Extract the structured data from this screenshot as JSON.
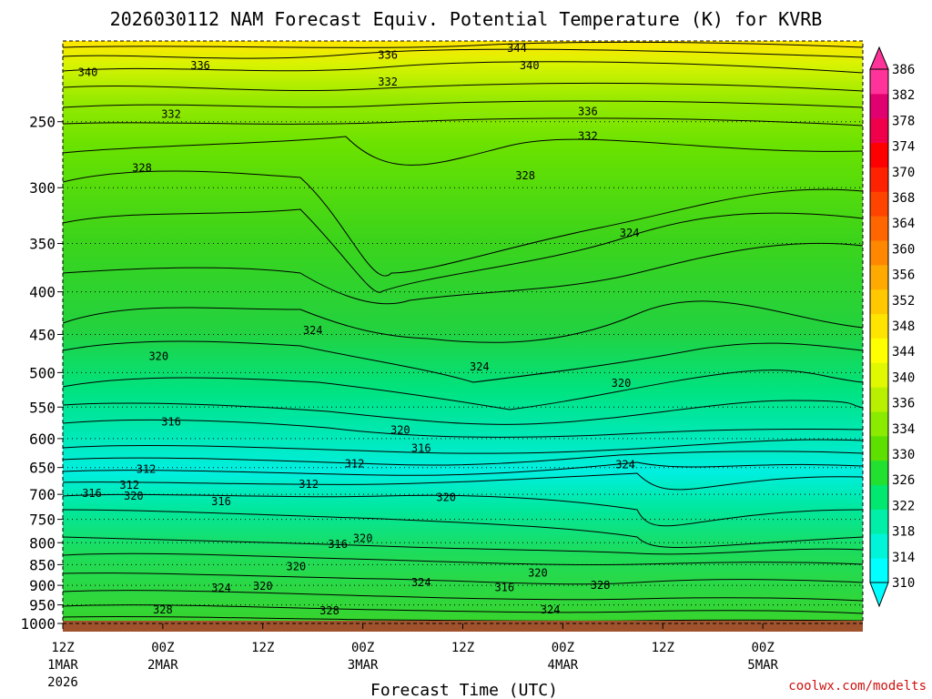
{
  "chart_data": {
    "type": "heatmap",
    "title": "2026030112 NAM Forecast Equiv. Potential Temperature (K) for KVRB",
    "xlabel": "Forecast Time (UTC)",
    "ylabel": "",
    "credit": "coolwx.com/modelts",
    "y_axis": {
      "scale": "log-pressure",
      "range": [
        1000,
        200
      ],
      "ticks": [
        250,
        300,
        350,
        400,
        450,
        500,
        550,
        600,
        650,
        700,
        750,
        800,
        850,
        900,
        950,
        1000
      ],
      "grid": true
    },
    "x_axis": {
      "range_hours": [
        0,
        96
      ],
      "ticks": [
        {
          "h": 0,
          "label1": "12Z",
          "label2": "1MAR",
          "label3": "2026"
        },
        {
          "h": 12,
          "label1": "00Z",
          "label2": "2MAR"
        },
        {
          "h": 24,
          "label1": "12Z"
        },
        {
          "h": 36,
          "label1": "00Z",
          "label2": "3MAR"
        },
        {
          "h": 48,
          "label1": "12Z"
        },
        {
          "h": 60,
          "label1": "00Z",
          "label2": "4MAR"
        },
        {
          "h": 72,
          "label1": "12Z"
        },
        {
          "h": 84,
          "label1": "00Z",
          "label2": "5MAR"
        }
      ]
    },
    "colorbar": {
      "units": "K",
      "levels": [
        310,
        314,
        318,
        322,
        326,
        330,
        334,
        336,
        340,
        344,
        348,
        352,
        356,
        360,
        364,
        368,
        370,
        374,
        378,
        382,
        386
      ],
      "colors": [
        "#00ffff",
        "#00f5d8",
        "#00efa8",
        "#00e870",
        "#22e030",
        "#5de000",
        "#8aeb00",
        "#b8f000",
        "#e0f800",
        "#ffff00",
        "#ffe400",
        "#ffc800",
        "#ffaa00",
        "#ff8800",
        "#ff6600",
        "#ff4400",
        "#ff2200",
        "#ff0000",
        "#f0004a",
        "#e00070",
        "#ff3399"
      ]
    },
    "contour_labels": [
      {
        "v": "336",
        "h": 39,
        "p": 208
      },
      {
        "v": "344",
        "h": 54.5,
        "p": 204
      },
      {
        "v": "340",
        "h": 3,
        "p": 218
      },
      {
        "v": "336",
        "h": 16.5,
        "p": 214
      },
      {
        "v": "340",
        "h": 56,
        "p": 214
      },
      {
        "v": "332",
        "h": 39,
        "p": 224
      },
      {
        "v": "332",
        "h": 13,
        "p": 245
      },
      {
        "v": "336",
        "h": 63,
        "p": 243
      },
      {
        "v": "332",
        "h": 63,
        "p": 260
      },
      {
        "v": "328",
        "h": 9.5,
        "p": 284
      },
      {
        "v": "328",
        "h": 55.5,
        "p": 290
      },
      {
        "v": "324",
        "h": 68,
        "p": 340
      },
      {
        "v": "324",
        "h": 30,
        "p": 445
      },
      {
        "v": "320",
        "h": 11.5,
        "p": 478
      },
      {
        "v": "324",
        "h": 50,
        "p": 492
      },
      {
        "v": "320",
        "h": 67,
        "p": 515
      },
      {
        "v": "316",
        "h": 13,
        "p": 573
      },
      {
        "v": "320",
        "h": 40.5,
        "p": 586
      },
      {
        "v": "316",
        "h": 43,
        "p": 616
      },
      {
        "v": "312",
        "h": 35,
        "p": 643
      },
      {
        "v": "312",
        "h": 10,
        "p": 653
      },
      {
        "v": "324",
        "h": 67.5,
        "p": 645
      },
      {
        "v": "312",
        "h": 8,
        "p": 682
      },
      {
        "v": "312",
        "h": 29.5,
        "p": 681
      },
      {
        "v": "316",
        "h": 3.5,
        "p": 698
      },
      {
        "v": "320",
        "h": 8.5,
        "p": 703
      },
      {
        "v": "320",
        "h": 46,
        "p": 706
      },
      {
        "v": "316",
        "h": 19,
        "p": 714
      },
      {
        "v": "320",
        "h": 36,
        "p": 790
      },
      {
        "v": "316",
        "h": 33,
        "p": 803
      },
      {
        "v": "320",
        "h": 28,
        "p": 855
      },
      {
        "v": "320",
        "h": 57,
        "p": 870
      },
      {
        "v": "324",
        "h": 43,
        "p": 893
      },
      {
        "v": "320",
        "h": 24,
        "p": 902
      },
      {
        "v": "324",
        "h": 19,
        "p": 907
      },
      {
        "v": "328",
        "h": 64.5,
        "p": 900
      },
      {
        "v": "316",
        "h": 53,
        "p": 906
      },
      {
        "v": "328",
        "h": 12,
        "p": 963
      },
      {
        "v": "328",
        "h": 32,
        "p": 966
      },
      {
        "v": "324",
        "h": 58.5,
        "p": 963
      }
    ]
  }
}
